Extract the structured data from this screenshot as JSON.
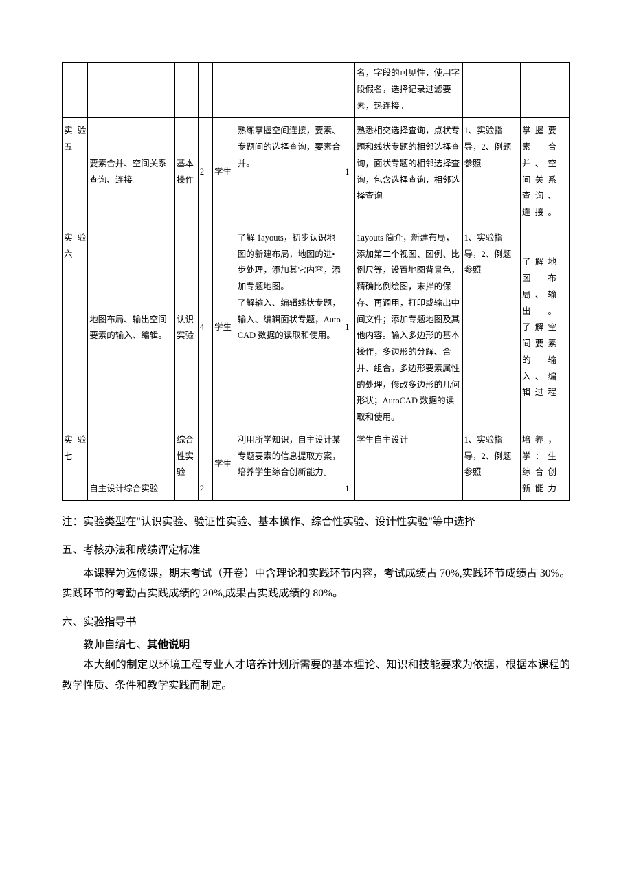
{
  "table": {
    "border_color": "#000000",
    "background_color": "#ffffff",
    "font_size_pt": 9,
    "line_height": 1.9,
    "columns_width_pct": [
      4.4,
      15,
      4,
      2.5,
      4,
      18.5,
      2,
      18.5,
      10,
      6.5,
      2
    ],
    "rows": [
      {
        "c0": "",
        "c1": "",
        "c2": "",
        "c3": "",
        "c4": "",
        "c5": "",
        "c6": "",
        "c7": "名，字段的可见性，使用字段假名，选择记录过滤要素，热连接。",
        "c8": "",
        "c9": "",
        "c10": ""
      },
      {
        "c0": "实验五",
        "c1": "要素合并、空间关系查询、连接。",
        "c2": "基本操作",
        "c3": "2",
        "c4": "学生",
        "c5": "熟练掌握空间连接，要素、专题间的选择查询，要素合并。",
        "c6": "1",
        "c7": "熟悉相交选择查询，点状专题和线状专题的相邻选择查询，面状专题的相邻选择查询，包含选择查询，相邻选择查询。",
        "c8": "1、实验指导，2、例题参照",
        "c9": "掌握要素合并、空间关系查询、连接。",
        "c10": ""
      },
      {
        "c0": "实验六",
        "c1": "地图布局、输出空间要素的输入、编辑。",
        "c2": "认识实验",
        "c3": "4",
        "c4": "学生",
        "c5": "了解 1ayouts，初步认识地图的新建布局，地图的进•步处理，添加其它内容，添加专题地图。\n了解输入、编辑线状专题，输入、编辑面状专题，AutoCAD 数据的读取和使用。",
        "c6": "1",
        "c7": "1ayouts 简介，新建布局，添加第二个视图、图例、比例尺等，设置地图背景色，精确比例绘图，末拌的保存、再调用，打印或输出中间文件；添加专题地图及其他内容。输入多边形的基本操作，多边形的分解、合并、组合，多边形要素属性的处理，修改多边形的几何形状；AutoCAD 数据的读取和使用。",
        "c8": "1、实验指导，2、例题参照",
        "c9": "了解地图布局、输出。\n了解空间要素的输入、编辑过程",
        "c10": ""
      },
      {
        "c0": "实验七",
        "c1": "自主设计综合实验",
        "c2": "综合性实验",
        "c3": "2",
        "c4": "学生",
        "c5": "利用所学知识，自主设计某专题要素的信息提取方案，培养学生综合创新能力。",
        "c6": "1",
        "c7": "学生自主设计",
        "c8": "1、实验指导，2、例题参照",
        "c9": "培养，学：生综合创新能力",
        "c10": ""
      }
    ]
  },
  "note": "注：实验类型在\"认识实验、验证性实验、基本操作、综合性实验、设计性实验\"等中选择",
  "section5": {
    "title": "五、考核办法和成绩评定标准",
    "body": "本课程为选修课，期末考试（开卷）中含理论和实践环节内容，考试成绩占 70%,实践环节成绩占 30%。实践环节的考勤占实践成绩的 20%,成果占实践成绩的 80%。"
  },
  "section6": {
    "title": "六、实验指导书",
    "line1_plain": "教师自编七、",
    "line1_bold": "其他说明",
    "body": "本大纲的制定以环境工程专业人才培养计划所需要的基本理论、知识和技能要求为依据，根据本课程的教学性质、条件和教学实践而制定。"
  },
  "colors": {
    "text": "#000000",
    "background": "#ffffff",
    "border": "#000000"
  },
  "typography": {
    "body_font_size_pt": 12,
    "table_font_size_pt": 9,
    "font_family": "SimSun"
  }
}
